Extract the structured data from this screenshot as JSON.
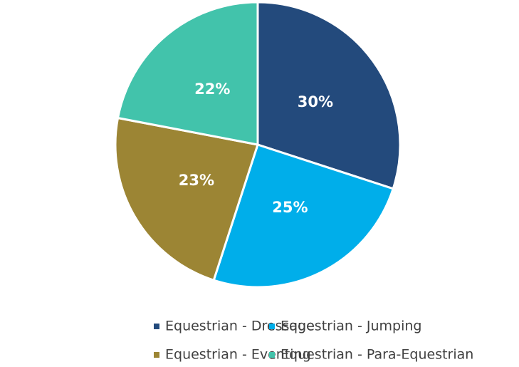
{
  "chart_data": {
    "type": "pie",
    "categories": [
      "Equestrian - Dressage",
      "Equestrian - Jumping",
      "Equestrian - Eventing",
      "Equestrian - Para-Equestrian"
    ],
    "values": [
      30,
      25,
      23,
      22
    ],
    "value_labels": [
      "30%",
      "25%",
      "23%",
      "22%"
    ],
    "colors": [
      "#234a7c",
      "#00aeea",
      "#9c8534",
      "#42c3ab"
    ],
    "legend": "bottom"
  }
}
